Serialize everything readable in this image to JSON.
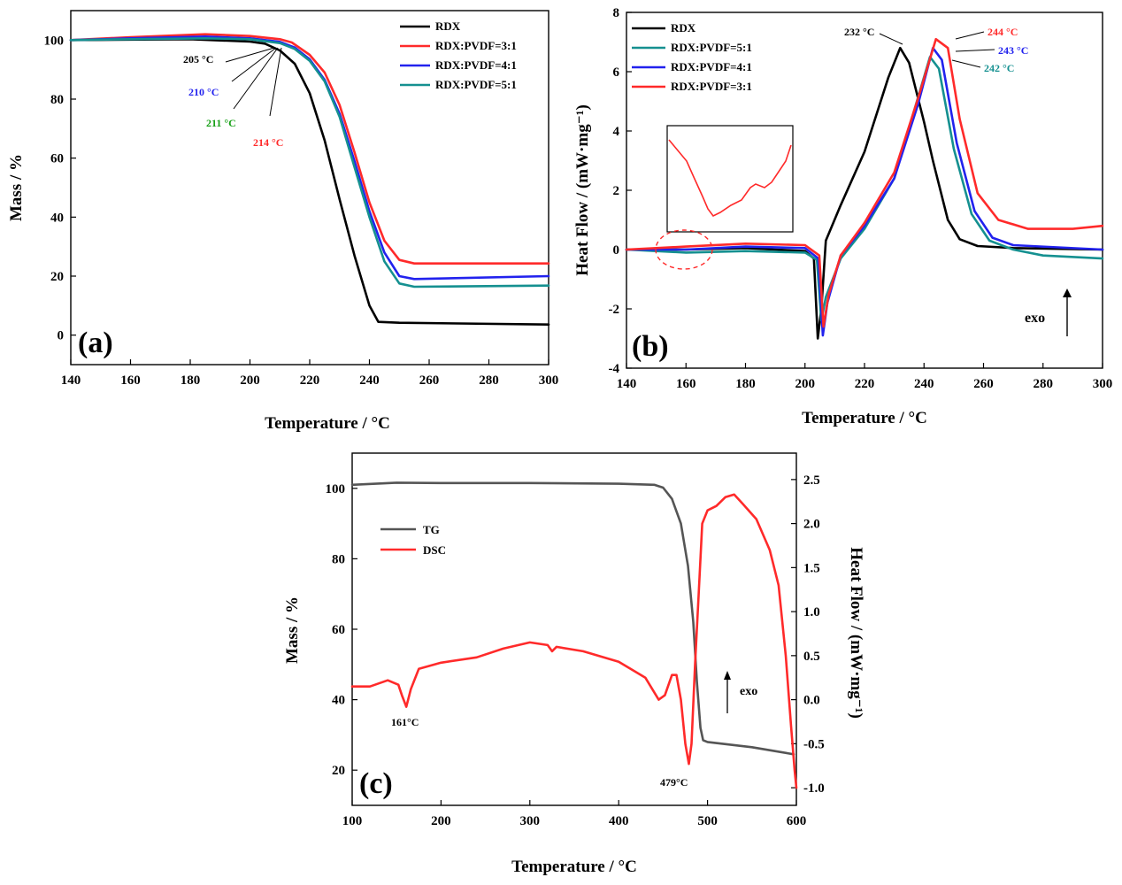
{
  "chart_data": [
    {
      "id": "a",
      "type": "line",
      "panel_label": "(a)",
      "xlabel": "Temperature  / °C",
      "ylabel": "Mass / %",
      "xlim": [
        140,
        300
      ],
      "ylim": [
        -10,
        110
      ],
      "xticks": [
        140,
        160,
        180,
        200,
        220,
        240,
        260,
        280,
        300
      ],
      "yticks": [
        0,
        20,
        40,
        60,
        80,
        100
      ],
      "legend_position": "top-right",
      "series": [
        {
          "name": "RDX",
          "color": "#000000",
          "points": [
            [
              140,
              100
            ],
            [
              180,
              100.3
            ],
            [
              200,
              99.5
            ],
            [
              205,
              98.8
            ],
            [
              210,
              96.5
            ],
            [
              215,
              92
            ],
            [
              220,
              82
            ],
            [
              225,
              66
            ],
            [
              230,
              46
            ],
            [
              235,
              27
            ],
            [
              240,
              10
            ],
            [
              243,
              4.5
            ],
            [
              250,
              4.2
            ],
            [
              300,
              3.6
            ]
          ]
        },
        {
          "name": "RDX:PVDF=3:1",
          "color": "#ff2a2a",
          "points": [
            [
              140,
              100
            ],
            [
              160,
              101
            ],
            [
              185,
              102
            ],
            [
              200,
              101.4
            ],
            [
              210,
              100.3
            ],
            [
              214,
              99.2
            ],
            [
              220,
              95
            ],
            [
              225,
              89
            ],
            [
              230,
              78
            ],
            [
              235,
              62
            ],
            [
              240,
              45
            ],
            [
              245,
              32
            ],
            [
              250,
              25.5
            ],
            [
              255,
              24.3
            ],
            [
              300,
              24.3
            ]
          ]
        },
        {
          "name": "RDX:PVDF=4:1",
          "color": "#2222ee",
          "points": [
            [
              140,
              100
            ],
            [
              160,
              100.6
            ],
            [
              185,
              101.2
            ],
            [
              200,
              100.6
            ],
            [
              210,
              99.4
            ],
            [
              215,
              97.5
            ],
            [
              220,
              93.5
            ],
            [
              225,
              86.5
            ],
            [
              230,
              75
            ],
            [
              235,
              59
            ],
            [
              240,
              42
            ],
            [
              245,
              28
            ],
            [
              250,
              20
            ],
            [
              255,
              19
            ],
            [
              300,
              20
            ]
          ]
        },
        {
          "name": "RDX:PVDF=5:1",
          "color": "#159090",
          "points": [
            [
              140,
              100
            ],
            [
              160,
              100.3
            ],
            [
              185,
              100.6
            ],
            [
              200,
              100.3
            ],
            [
              210,
              99
            ],
            [
              215,
              97
            ],
            [
              220,
              93
            ],
            [
              225,
              86
            ],
            [
              230,
              74
            ],
            [
              235,
              57
            ],
            [
              240,
              40
            ],
            [
              245,
              25
            ],
            [
              250,
              17.5
            ],
            [
              255,
              16.4
            ],
            [
              300,
              16.8
            ]
          ]
        }
      ],
      "annotations": [
        {
          "text": "205 °C",
          "color": "#000000"
        },
        {
          "text": "210 °C",
          "color": "#2222ee"
        },
        {
          "text": "211 °C",
          "color": "#17a017"
        },
        {
          "text": "214 °C",
          "color": "#ff2a2a"
        }
      ]
    },
    {
      "id": "b",
      "type": "line",
      "panel_label": "(b)",
      "xlabel": "Temperature  / °C",
      "ylabel": "Heat Flow / (mW·mg⁻¹)",
      "xlim": [
        140,
        300
      ],
      "ylim": [
        -4,
        8
      ],
      "xticks": [
        140,
        160,
        180,
        200,
        220,
        240,
        260,
        280,
        300
      ],
      "yticks": [
        -4,
        -2,
        0,
        2,
        4,
        6,
        8
      ],
      "legend_position": "top-left",
      "exo_label": "exo",
      "series": [
        {
          "name": "RDX",
          "color": "#000000",
          "points": [
            [
              140,
              0
            ],
            [
              160,
              0
            ],
            [
              180,
              0.05
            ],
            [
              200,
              -0.05
            ],
            [
              203,
              -0.3
            ],
            [
              204.3,
              -3.0
            ],
            [
              205.5,
              -2.0
            ],
            [
              207,
              0.3
            ],
            [
              212,
              1.5
            ],
            [
              220,
              3.3
            ],
            [
              228,
              5.8
            ],
            [
              232,
              6.8
            ],
            [
              235,
              6.3
            ],
            [
              240,
              4.3
            ],
            [
              243,
              3.0
            ],
            [
              248,
              1.0
            ],
            [
              252,
              0.35
            ],
            [
              258,
              0.12
            ],
            [
              270,
              0.05
            ],
            [
              300,
              0
            ]
          ]
        },
        {
          "name": "RDX:PVDF=5:1",
          "color": "#159090",
          "points": [
            [
              140,
              0
            ],
            [
              160,
              -0.1
            ],
            [
              180,
              -0.05
            ],
            [
              200,
              -0.1
            ],
            [
              204,
              -0.35
            ],
            [
              205.5,
              -2.4
            ],
            [
              207,
              -1.6
            ],
            [
              212,
              -0.3
            ],
            [
              220,
              0.7
            ],
            [
              230,
              2.4
            ],
            [
              237,
              4.8
            ],
            [
              242,
              6.5
            ],
            [
              245,
              6.1
            ],
            [
              250,
              3.4
            ],
            [
              256,
              1.2
            ],
            [
              262,
              0.3
            ],
            [
              270,
              0.0
            ],
            [
              280,
              -0.2
            ],
            [
              300,
              -0.3
            ]
          ]
        },
        {
          "name": "RDX:PVDF=4:1",
          "color": "#2222ee",
          "points": [
            [
              140,
              0
            ],
            [
              160,
              0.0
            ],
            [
              180,
              0.1
            ],
            [
              200,
              0.05
            ],
            [
              204.5,
              -0.3
            ],
            [
              206,
              -2.9
            ],
            [
              207.5,
              -1.8
            ],
            [
              212,
              -0.2
            ],
            [
              220,
              0.8
            ],
            [
              230,
              2.4
            ],
            [
              238,
              4.9
            ],
            [
              243,
              6.8
            ],
            [
              246,
              6.4
            ],
            [
              251,
              3.6
            ],
            [
              257,
              1.3
            ],
            [
              263,
              0.4
            ],
            [
              270,
              0.15
            ],
            [
              300,
              0
            ]
          ]
        },
        {
          "name": "RDX:PVDF=3:1",
          "color": "#ff2a2a",
          "points": [
            [
              140,
              0
            ],
            [
              160,
              0.1
            ],
            [
              180,
              0.2
            ],
            [
              200,
              0.15
            ],
            [
              204.8,
              -0.2
            ],
            [
              206.2,
              -2.6
            ],
            [
              208,
              -1.5
            ],
            [
              212,
              -0.2
            ],
            [
              220,
              0.9
            ],
            [
              230,
              2.6
            ],
            [
              238,
              5.1
            ],
            [
              244,
              7.1
            ],
            [
              248,
              6.8
            ],
            [
              252,
              4.4
            ],
            [
              258,
              1.9
            ],
            [
              265,
              1.0
            ],
            [
              275,
              0.7
            ],
            [
              290,
              0.7
            ],
            [
              300,
              0.8
            ]
          ]
        }
      ],
      "annotations": [
        {
          "text": "232 °C",
          "color": "#000000"
        },
        {
          "text": "244 °C",
          "color": "#ff2a2a"
        },
        {
          "text": "243 °C",
          "color": "#2222ee"
        },
        {
          "text": "242 °C",
          "color": "#159090"
        }
      ]
    },
    {
      "id": "c",
      "type": "line",
      "panel_label": "(c)",
      "xlabel": "Temperature / °C",
      "ylabel_left": "Mass / %",
      "ylabel_right": "Heat Flow / (mW·mg⁻¹)",
      "xlim": [
        100,
        600
      ],
      "ylim_left": [
        10,
        110
      ],
      "ylim_right": [
        -1.2,
        2.8
      ],
      "xticks": [
        100,
        200,
        300,
        400,
        500,
        600
      ],
      "yticks_left": [
        20,
        40,
        60,
        80,
        100
      ],
      "yticks_right": [
        -1.0,
        -0.5,
        0.0,
        0.5,
        1.0,
        1.5,
        2.0,
        2.5
      ],
      "yticks_right_labels": [
        "-1.0",
        "-0.5",
        "0.0",
        "0.5",
        "1.0",
        "1.5",
        "2.0",
        "2.5"
      ],
      "legend_position": "top-left",
      "exo_label": "exo",
      "series": [
        {
          "name": "TG",
          "axis": "left",
          "color": "#555555",
          "points": [
            [
              100,
              101
            ],
            [
              150,
              101.6
            ],
            [
              200,
              101.5
            ],
            [
              300,
              101.5
            ],
            [
              400,
              101.3
            ],
            [
              440,
              101
            ],
            [
              450,
              100.2
            ],
            [
              460,
              97
            ],
            [
              470,
              90
            ],
            [
              478,
              78
            ],
            [
              484,
              62
            ],
            [
              488,
              45
            ],
            [
              492,
              32
            ],
            [
              495,
              28.5
            ],
            [
              500,
              28
            ],
            [
              550,
              26.5
            ],
            [
              590,
              24.8
            ],
            [
              597,
              24.5
            ]
          ]
        },
        {
          "name": "DSC",
          "axis": "right",
          "color": "#ff2a2a",
          "points": [
            [
              100,
              0.15
            ],
            [
              120,
              0.15
            ],
            [
              140,
              0.22
            ],
            [
              152,
              0.17
            ],
            [
              156,
              0.05
            ],
            [
              161,
              -0.08
            ],
            [
              166,
              0.12
            ],
            [
              175,
              0.35
            ],
            [
              200,
              0.42
            ],
            [
              240,
              0.48
            ],
            [
              270,
              0.58
            ],
            [
              300,
              0.65
            ],
            [
              320,
              0.62
            ],
            [
              325,
              0.55
            ],
            [
              330,
              0.6
            ],
            [
              360,
              0.55
            ],
            [
              400,
              0.43
            ],
            [
              430,
              0.25
            ],
            [
              445,
              0.0
            ],
            [
              452,
              0.05
            ],
            [
              460,
              0.28
            ],
            [
              465,
              0.28
            ],
            [
              470,
              0.0
            ],
            [
              475,
              -0.5
            ],
            [
              479,
              -0.73
            ],
            [
              482,
              -0.5
            ],
            [
              486,
              0.4
            ],
            [
              490,
              1.2
            ],
            [
              494,
              2.0
            ],
            [
              500,
              2.15
            ],
            [
              510,
              2.2
            ],
            [
              520,
              2.3
            ],
            [
              530,
              2.33
            ],
            [
              540,
              2.22
            ],
            [
              555,
              2.05
            ],
            [
              570,
              1.7
            ],
            [
              580,
              1.3
            ],
            [
              588,
              0.5
            ],
            [
              594,
              -0.3
            ],
            [
              598,
              -0.8
            ],
            [
              600,
              -1.0
            ]
          ]
        }
      ],
      "annotations": [
        {
          "text": "161°C",
          "color": "#000000"
        },
        {
          "text": "479°C",
          "color": "#000000"
        }
      ]
    }
  ]
}
